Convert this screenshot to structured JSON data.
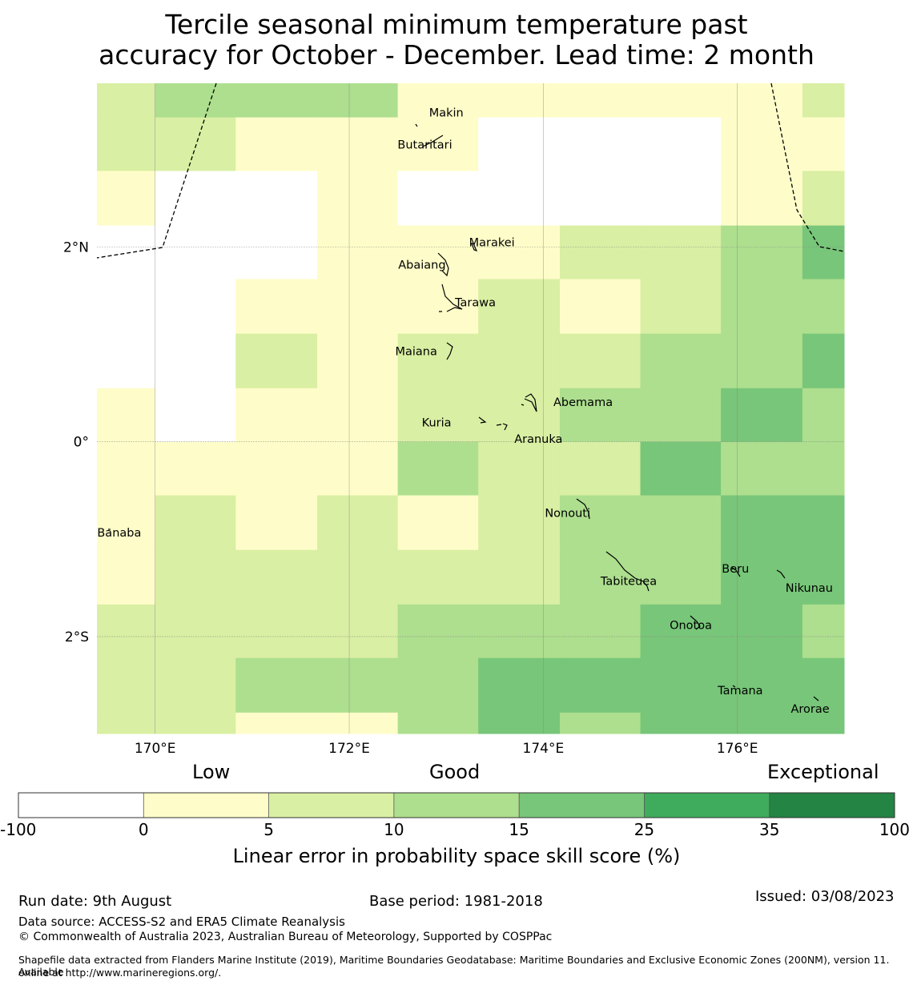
{
  "title": {
    "line1": "Tercile seasonal minimum temperature past",
    "line2": "accuracy for October - December. Lead time: 2 month"
  },
  "map": {
    "lon_range": [
      169.4,
      177.1
    ],
    "lat_range": [
      -2.995,
      3.68
    ],
    "lon_ticks": [
      {
        "value": 170,
        "label": "170°E"
      },
      {
        "value": 172,
        "label": "172°E"
      },
      {
        "value": 174,
        "label": "174°E"
      },
      {
        "value": 176,
        "label": "176°E"
      }
    ],
    "lat_ticks": [
      {
        "value": 2,
        "label": "2°N"
      },
      {
        "value": 0,
        "label": "0°"
      },
      {
        "value": -2,
        "label": "2°S"
      }
    ],
    "grid_lon_edges": [
      169.4,
      170.0,
      170.83,
      171.67,
      172.5,
      173.33,
      174.17,
      175.0,
      175.83,
      176.67,
      177.1
    ],
    "grid_lat_edges": [
      3.68,
      3.33,
      2.78,
      2.22,
      1.67,
      1.11,
      0.55,
      0.0,
      -0.55,
      -1.11,
      -1.67,
      -2.22,
      -2.78,
      -2.995
    ],
    "cell_classes": [
      [
        2,
        3,
        3,
        3,
        1,
        1,
        1,
        1,
        1,
        2
      ],
      [
        2,
        2,
        1,
        1,
        1,
        0,
        0,
        0,
        1,
        1
      ],
      [
        1,
        0,
        0,
        1,
        0,
        0,
        0,
        0,
        1,
        2
      ],
      [
        0,
        0,
        0,
        1,
        1,
        1,
        2,
        2,
        3,
        4
      ],
      [
        0,
        0,
        1,
        1,
        1,
        2,
        1,
        2,
        3,
        3
      ],
      [
        0,
        0,
        2,
        1,
        2,
        2,
        2,
        3,
        3,
        4
      ],
      [
        1,
        0,
        1,
        1,
        2,
        2,
        3,
        3,
        4,
        3
      ],
      [
        1,
        1,
        1,
        1,
        3,
        2,
        2,
        4,
        3,
        3
      ],
      [
        1,
        2,
        1,
        2,
        1,
        2,
        3,
        3,
        4,
        4
      ],
      [
        1,
        2,
        2,
        2,
        2,
        2,
        3,
        3,
        4,
        4
      ],
      [
        2,
        2,
        2,
        2,
        3,
        3,
        3,
        4,
        4,
        3
      ],
      [
        2,
        2,
        3,
        3,
        3,
        4,
        4,
        4,
        4,
        4
      ],
      [
        2,
        2,
        1,
        1,
        3,
        4,
        3,
        4,
        4,
        4
      ]
    ],
    "places": [
      {
        "name": "Makin",
        "lon": 173.0,
        "lat": 3.38
      },
      {
        "name": "Butaritari",
        "lon": 172.78,
        "lat": 3.05
      },
      {
        "name": "Marakei",
        "lon": 173.47,
        "lat": 2.05
      },
      {
        "name": "Abaiang",
        "lon": 172.75,
        "lat": 1.82
      },
      {
        "name": "Tarawa",
        "lon": 173.3,
        "lat": 1.43
      },
      {
        "name": "Maiana",
        "lon": 172.69,
        "lat": 0.93
      },
      {
        "name": "Abemama",
        "lon": 174.41,
        "lat": 0.41
      },
      {
        "name": "Kuria",
        "lon": 172.9,
        "lat": 0.2
      },
      {
        "name": "Aranuka",
        "lon": 173.95,
        "lat": 0.03
      },
      {
        "name": "Nonouti",
        "lon": 174.25,
        "lat": -0.73
      },
      {
        "name": "Banaba",
        "lon": 169.63,
        "lat": -0.93
      },
      {
        "name": "Beru",
        "lon": 175.98,
        "lat": -1.3
      },
      {
        "name": "Tabiteuea",
        "lon": 174.88,
        "lat": -1.43
      },
      {
        "name": "Nikunau",
        "lon": 176.74,
        "lat": -1.5
      },
      {
        "name": "Onotoa",
        "lon": 175.52,
        "lat": -1.88
      },
      {
        "name": "Tamana",
        "lon": 176.03,
        "lat": -2.55
      },
      {
        "name": "Arorae",
        "lon": 176.75,
        "lat": -2.74
      }
    ]
  },
  "colorbar": {
    "boundaries": [
      "-100",
      "0",
      "5",
      "10",
      "15",
      "25",
      "35",
      "100"
    ],
    "colors": [
      "#ffffff",
      "#fefdc9",
      "#d9efa3",
      "#addf8e",
      "#78c679",
      "#3fab5c",
      "#238443"
    ],
    "category_labels": {
      "low": "Low",
      "good": "Good",
      "exceptional": "Exceptional"
    },
    "label": "Linear error in probability space skill score (%)"
  },
  "footer": {
    "run_date": "Run date: 9th August",
    "base_period": "Base period: 1981-2018",
    "issued": "Issued: 03/08/2023",
    "data_source": "Data source: ACCESS-S2 and ERA5 Climate Reanalysis",
    "copyright": "© Commonwealth of Australia 2023, Australian Bureau of Meteorology, Supported by COSPPac",
    "shapefile_line1": "Shapefile data extracted from Flanders Marine Institute (2019), Maritime Boundaries Geodatabase: Maritime Boundaries and Exclusive Economic Zones (200NM), version 11. Available",
    "shapefile_line2": "online at http://www.marineregions.org/."
  }
}
